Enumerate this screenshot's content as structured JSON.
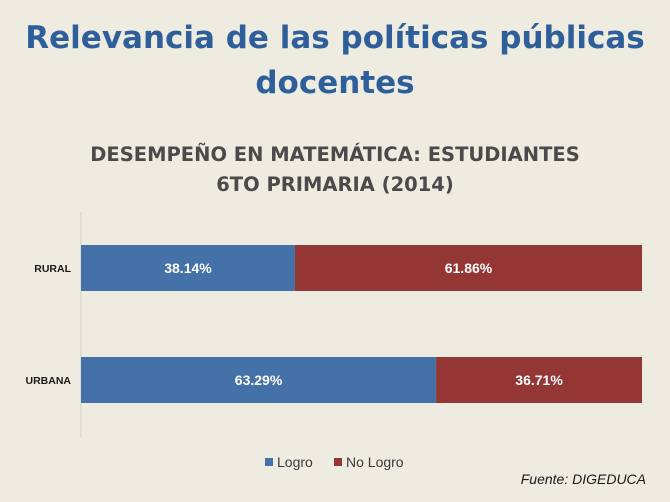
{
  "slide": {
    "title_line1": "Relevancia de las políticas públicas",
    "title_line2": "docentes",
    "source": "Fuente: DIGEDUCA"
  },
  "colors": {
    "background": "#EEEBE0",
    "title": "#2F5F9A",
    "logro": "#4472A8",
    "no_logro": "#943634"
  },
  "chart_data": {
    "type": "bar",
    "orientation": "horizontal",
    "stacked": "100%",
    "title_line1": "DESEMPEÑO EN MATEMÁTICA: ESTUDIANTES",
    "title_line2": "6TO PRIMARIA (2014)",
    "categories": [
      "RURAL",
      "URBANA"
    ],
    "series": [
      {
        "name": "Logro",
        "values": [
          38.14,
          63.29
        ],
        "labels": [
          "38.14%",
          "63.29%"
        ],
        "color": "#4472A8"
      },
      {
        "name": "No Logro",
        "values": [
          61.86,
          36.71
        ],
        "labels": [
          "61.86%",
          "36.71%"
        ],
        "color": "#943634"
      }
    ],
    "xlim": [
      0,
      100
    ],
    "grid": false,
    "legend_position": "bottom"
  }
}
